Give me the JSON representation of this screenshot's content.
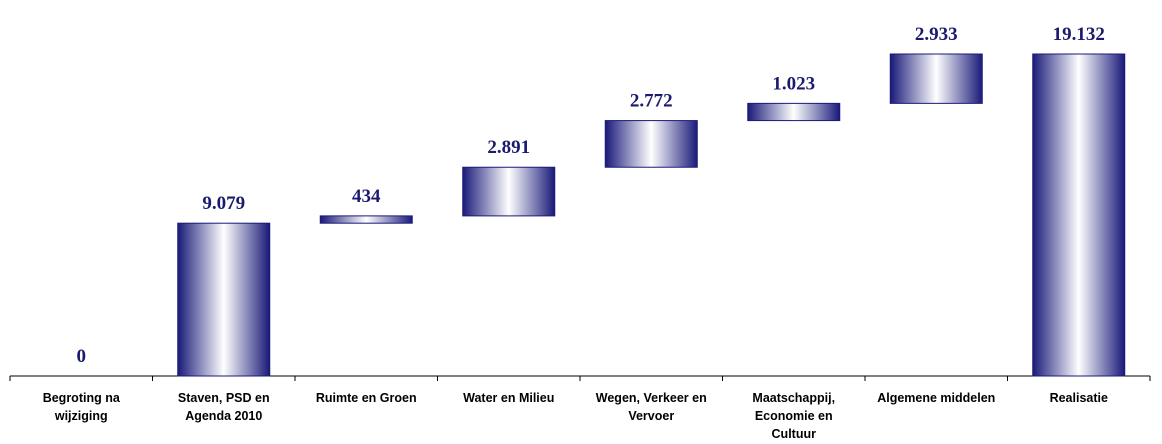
{
  "chart_data": {
    "type": "waterfall",
    "categories": [
      "Begroting na wijziging",
      "Staven, PSD en Agenda 2010",
      "Ruimte en Groen",
      "Water en Milieu",
      "Wegen, Verkeer en Vervoer",
      "Maatschappij, Economie en Cultuur",
      "Algemene middelen",
      "Realisatie"
    ],
    "values": [
      0,
      9079,
      434,
      2891,
      2772,
      1023,
      2933,
      19132
    ],
    "value_labels": [
      "0",
      "9.079",
      "434",
      "2.891",
      "2.772",
      "1.023",
      "2.933",
      "19.132"
    ],
    "measures": [
      "absolute",
      "relative",
      "relative",
      "relative",
      "relative",
      "relative",
      "relative",
      "total"
    ],
    "color": "#1a1a7a"
  }
}
